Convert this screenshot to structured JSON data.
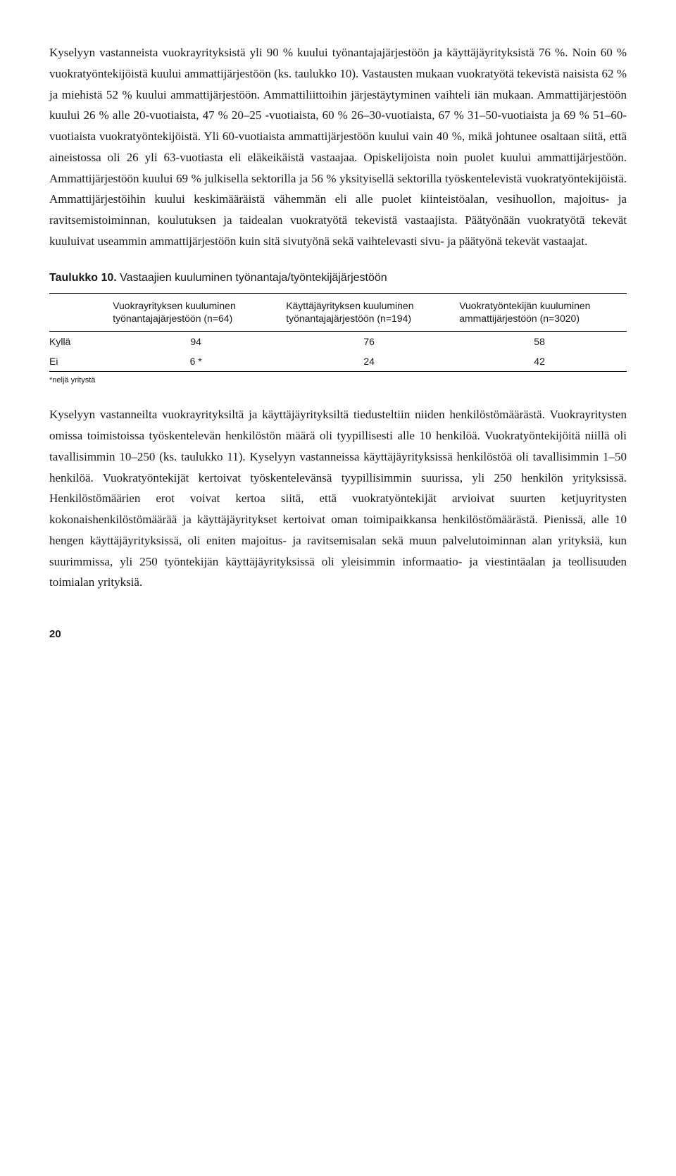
{
  "para1": "Kyselyyn vastanneista vuokrayrityksistä yli 90 % kuului työnantajajärjestöön ja käyttäjäyrityksistä 76 %. Noin 60 % vuokratyöntekijöistä kuului ammattijärjestöön (ks. taulukko 10). Vastausten mukaan vuokratyötä tekevistä naisista 62 % ja miehistä 52 % kuului ammattijärjestöön. Ammattiliittoihin järjestäytyminen vaihteli iän mukaan. Ammattijärjestöön kuului 26 % alle 20-vuotiaista, 47 % 20–25 -vuotiaista, 60 % 26–30-vuotiaista, 67 % 31–50-vuotiaista ja 69 % 51–60-vuotiaista vuokratyöntekijöistä. Yli 60-vuotiaista ammattijärjestöön kuului vain 40 %, mikä johtunee osaltaan siitä, että aineistossa oli 26 yli 63-vuotiasta eli eläkeikäistä vastaajaa. Opiskelijoista noin puolet kuului ammattijärjestöön. Ammattijärjestöön kuului 69 % julkisella sektorilla ja 56 % yksityisellä sektorilla työskentelevistä vuokratyöntekijöistä. Ammattijärjestöihin kuului keskimääräistä vähemmän eli alle puolet kiinteistöalan, vesihuollon, majoitus- ja ravitsemistoiminnan, koulutuksen ja taidealan vuokratyötä tekevistä vastaajista. Päätyönään vuokratyötä tekevät kuuluivat useammin ammattijärjestöön kuin sitä sivutyönä sekä vaihtelevasti sivu- ja päätyönä tekevät vastaajat.",
  "table": {
    "title_bold": "Taulukko 10.",
    "title_rest": " Vastaajien kuuluminen työnantaja/työntekijäjärjestöön",
    "headers": {
      "c0": "",
      "c1": "Vuokrayrityksen kuuluminen työnantajajärjestöön (n=64)",
      "c2": "Käyttäjäyrityksen kuuluminen työnantajajärjestöön (n=194)",
      "c3": "Vuokratyöntekijän kuuluminen ammattijärjestöön (n=3020)"
    },
    "rows": [
      {
        "label": "Kyllä",
        "v1": "94",
        "v2": "76",
        "v3": "58"
      },
      {
        "label": "Ei",
        "v1": "6 *",
        "v2": "24",
        "v3": "42"
      }
    ],
    "footnote": "*neljä yritystä"
  },
  "para2": "Kyselyyn vastanneilta vuokrayrityksiltä ja käyttäjäyrityksiltä tiedusteltiin niiden henkilöstömäärästä. Vuokrayritysten omissa toimistoissa työskentelevän henkilöstön määrä oli tyypillisesti alle 10 henkilöä. Vuokratyöntekijöitä niillä oli tavallisimmin 10–250 (ks. taulukko 11). Kyselyyn vastanneissa käyttäjäyrityksissä henkilöstöä oli tavallisimmin 1–50 henkilöä. Vuokratyöntekijät kertoivat työskentelevänsä tyypillisimmin suurissa, yli 250 henkilön yrityksissä. Henkilöstömäärien erot voivat kertoa siitä, että vuokratyöntekijät arvioivat suurten ketjuyritysten kokonaishenkilöstömäärää ja käyttäjäyritykset kertoivat oman toimipaikkansa henkilöstömäärästä. Pienissä, alle 10 hengen käyttäjäyrityksissä, oli eniten majoitus- ja ravitsemisalan sekä muun palvelutoiminnan alan yrityksiä, kun suurimmissa, yli 250 työntekijän käyttäjäyrityksissä oli yleisimmin informaatio- ja viestintäalan ja teollisuuden toimialan yrityksiä.",
  "pagenum": "20"
}
